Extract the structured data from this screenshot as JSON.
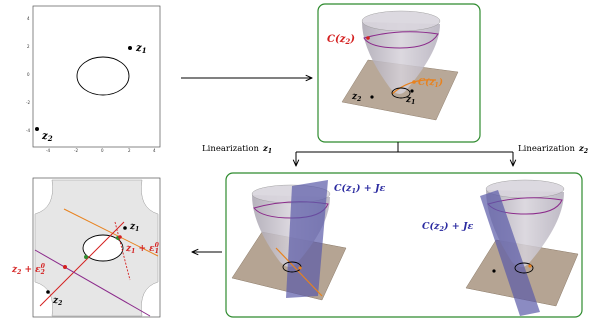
{
  "top_left_plot": {
    "point1_label": "z",
    "point1_sub": "1",
    "point2_label": "z",
    "point2_sub": "2",
    "x_ticks": [
      "-4",
      "-2",
      "0",
      "2",
      "4"
    ],
    "y_ticks": [
      "4",
      "2",
      "0",
      "-2",
      "-4"
    ]
  },
  "top_surface": {
    "c_label": "C(z",
    "c_sub": "2",
    "c_close": ")",
    "c1_label": "C(z",
    "c1_sub": "1",
    "c1_close": ")",
    "z1_label": "z",
    "z1_sub": "1",
    "z2_label": "z",
    "z2_sub": "2"
  },
  "branch_left": {
    "text": "Linearization",
    "var": "z",
    "sub": "1"
  },
  "branch_right": {
    "text": "Linearization",
    "var": "z",
    "sub": "2"
  },
  "bottom_left_surface": {
    "label": "C(z",
    "sub": "1",
    "rest": ") + Jε"
  },
  "bottom_right_surface": {
    "label": "C(z",
    "sub": "2",
    "rest": ") + Jε"
  },
  "bottom_left_plot": {
    "z1_label": "z",
    "z1_sub": "1",
    "z1_eps": " + ε",
    "z1_eps_sub": "1",
    "z1_eps_sup": "0",
    "z2_label": "z",
    "z2_sub": "2",
    "z2_eps": " + ε",
    "z2_eps_sub": "2",
    "z2_eps_sup": "0",
    "z2b_label": "z",
    "z2b_sub": "2"
  },
  "colors": {
    "green_frame": "#2e8b2e",
    "red_label": "#d42020",
    "orange": "#e8821e",
    "blue_label": "#2a2aa0",
    "purple": "#8b2a8b",
    "plane": "#b5a493",
    "cone": "#c8c3cc"
  }
}
